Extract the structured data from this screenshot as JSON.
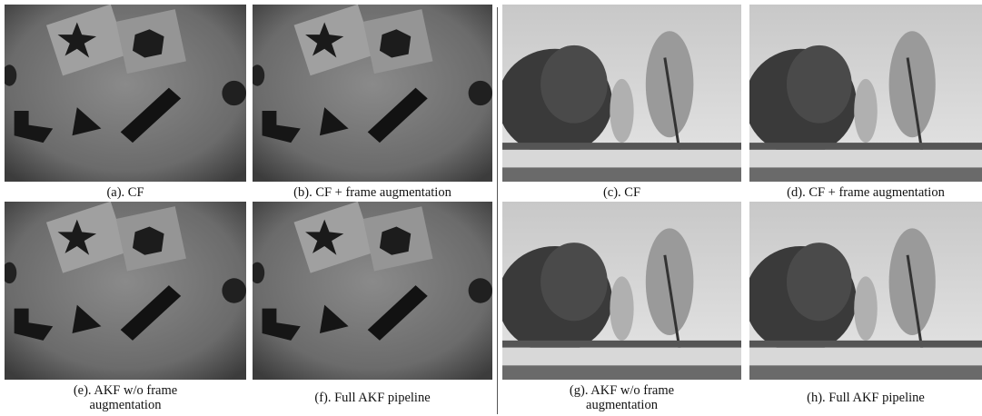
{
  "panels": [
    {
      "caption": "(a). CF"
    },
    {
      "caption": "(b). CF + frame augmentation"
    },
    {
      "caption": "(c). CF"
    },
    {
      "caption": "(d). CF + frame augmentation"
    },
    {
      "caption": "(e). AKF w/o frame augmentation"
    },
    {
      "caption": "(f). Full AKF pipeline"
    },
    {
      "caption": "(g). AKF w/o frame augmentation"
    },
    {
      "caption": "(h). Full AKF pipeline"
    }
  ]
}
